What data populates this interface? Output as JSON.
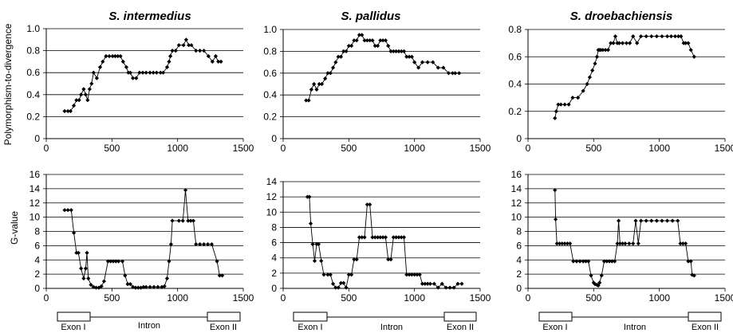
{
  "row_labels": {
    "top": "Polymorphism-to-divergence",
    "bottom": "G-value"
  },
  "gene_structure": {
    "exon1": "Exon I",
    "intron": "Intron",
    "exon2": "Exon II"
  },
  "chart_data": [
    {
      "type": "line",
      "title": "S. intermedius",
      "ylabel": "Polymorphism-to-divergence",
      "xlim": [
        0,
        1500
      ],
      "xticks": [
        0,
        500,
        1000,
        1500
      ],
      "ylim": [
        0,
        1.0
      ],
      "yticks": [
        0,
        0.2,
        0.4,
        0.6,
        0.8,
        1.0
      ],
      "ytick_labels": [
        "0",
        "0.2",
        "0.4",
        "0.6",
        "0.8",
        "1.0"
      ],
      "grid": "horizontal",
      "x": [
        140,
        165,
        185,
        210,
        230,
        250,
        265,
        285,
        300,
        315,
        330,
        345,
        360,
        385,
        410,
        430,
        455,
        480,
        505,
        525,
        545,
        565,
        585,
        610,
        625,
        640,
        660,
        685,
        710,
        735,
        760,
        790,
        815,
        840,
        870,
        890,
        920,
        935,
        945,
        960,
        985,
        1010,
        1045,
        1065,
        1085,
        1105,
        1140,
        1170,
        1200,
        1235,
        1265,
        1290,
        1310,
        1330
      ],
      "y": [
        0.25,
        0.25,
        0.25,
        0.3,
        0.35,
        0.35,
        0.4,
        0.45,
        0.4,
        0.35,
        0.45,
        0.5,
        0.6,
        0.55,
        0.65,
        0.7,
        0.75,
        0.75,
        0.75,
        0.75,
        0.75,
        0.75,
        0.7,
        0.65,
        0.6,
        0.6,
        0.55,
        0.55,
        0.6,
        0.6,
        0.6,
        0.6,
        0.6,
        0.6,
        0.6,
        0.6,
        0.65,
        0.7,
        0.75,
        0.8,
        0.8,
        0.85,
        0.85,
        0.9,
        0.85,
        0.85,
        0.8,
        0.8,
        0.8,
        0.75,
        0.7,
        0.75,
        0.7,
        0.7
      ]
    },
    {
      "type": "line",
      "title": "S. pallidus",
      "ylabel": "",
      "xlim": [
        0,
        1500
      ],
      "xticks": [
        0,
        500,
        1000,
        1500
      ],
      "ylim": [
        0,
        1.0
      ],
      "yticks": [
        0,
        0.2,
        0.4,
        0.6,
        0.8,
        1.0
      ],
      "ytick_labels": [
        "0",
        "0.2",
        "0.4",
        "0.6",
        "0.8",
        "1.0"
      ],
      "grid": "horizontal",
      "x": [
        175,
        195,
        215,
        235,
        255,
        275,
        295,
        320,
        340,
        360,
        380,
        400,
        420,
        440,
        460,
        480,
        500,
        520,
        540,
        560,
        580,
        600,
        620,
        640,
        660,
        680,
        700,
        720,
        740,
        760,
        780,
        800,
        820,
        840,
        860,
        880,
        900,
        920,
        940,
        960,
        980,
        1000,
        1030,
        1060,
        1100,
        1140,
        1180,
        1220,
        1260,
        1290,
        1310,
        1340
      ],
      "y": [
        0.35,
        0.35,
        0.45,
        0.5,
        0.45,
        0.5,
        0.5,
        0.55,
        0.6,
        0.6,
        0.65,
        0.7,
        0.75,
        0.75,
        0.8,
        0.8,
        0.85,
        0.85,
        0.9,
        0.9,
        0.95,
        0.95,
        0.9,
        0.9,
        0.9,
        0.9,
        0.85,
        0.85,
        0.9,
        0.9,
        0.9,
        0.85,
        0.8,
        0.8,
        0.8,
        0.8,
        0.8,
        0.8,
        0.75,
        0.75,
        0.75,
        0.7,
        0.65,
        0.7,
        0.7,
        0.7,
        0.65,
        0.65,
        0.6,
        0.6,
        0.6,
        0.6
      ]
    },
    {
      "type": "line",
      "title": "S. droebachiensis",
      "ylabel": "",
      "xlim": [
        0,
        1500
      ],
      "xticks": [
        0,
        500,
        1000,
        1500
      ],
      "ylim": [
        0,
        0.8
      ],
      "yticks": [
        0,
        0.2,
        0.4,
        0.6,
        0.8
      ],
      "ytick_labels": [
        "0",
        "0.2",
        "0.4",
        "0.6",
        "0.8"
      ],
      "grid": "horizontal",
      "x": [
        205,
        215,
        230,
        250,
        280,
        310,
        340,
        380,
        420,
        450,
        470,
        490,
        510,
        525,
        535,
        545,
        555,
        570,
        590,
        610,
        630,
        650,
        665,
        680,
        695,
        720,
        750,
        775,
        800,
        830,
        860,
        900,
        940,
        980,
        1020,
        1060,
        1090,
        1120,
        1145,
        1165,
        1185,
        1200,
        1220,
        1240,
        1265
      ],
      "y": [
        0.15,
        0.2,
        0.25,
        0.25,
        0.25,
        0.25,
        0.3,
        0.3,
        0.35,
        0.4,
        0.45,
        0.5,
        0.55,
        0.6,
        0.65,
        0.65,
        0.65,
        0.65,
        0.65,
        0.65,
        0.7,
        0.7,
        0.75,
        0.7,
        0.7,
        0.7,
        0.7,
        0.7,
        0.75,
        0.7,
        0.75,
        0.75,
        0.75,
        0.75,
        0.75,
        0.75,
        0.75,
        0.75,
        0.75,
        0.75,
        0.7,
        0.7,
        0.7,
        0.65,
        0.6
      ]
    },
    {
      "type": "line",
      "title": "",
      "ylabel": "G-value",
      "xlim": [
        0,
        1500
      ],
      "xticks": [
        0,
        500,
        1000,
        1500
      ],
      "ylim": [
        0,
        16
      ],
      "yticks": [
        0,
        2,
        4,
        6,
        8,
        10,
        12,
        14,
        16
      ],
      "ytick_labels": [
        "0",
        "2",
        "4",
        "6",
        "8",
        "10",
        "12",
        "14",
        "16"
      ],
      "grid": "horizontal",
      "x": [
        140,
        165,
        190,
        210,
        230,
        245,
        265,
        285,
        300,
        310,
        320,
        340,
        360,
        380,
        400,
        420,
        440,
        470,
        490,
        510,
        530,
        550,
        580,
        600,
        620,
        640,
        660,
        680,
        700,
        720,
        740,
        760,
        790,
        820,
        850,
        880,
        900,
        920,
        935,
        950,
        960,
        1010,
        1040,
        1060,
        1080,
        1100,
        1120,
        1140,
        1170,
        1200,
        1230,
        1260,
        1300,
        1320,
        1340
      ],
      "y": [
        11,
        11,
        11,
        7.8,
        5.0,
        5.0,
        2.8,
        1.4,
        2.8,
        5.0,
        1.4,
        0.5,
        0.2,
        0.1,
        0.1,
        0.3,
        1.0,
        3.8,
        3.8,
        3.8,
        3.8,
        3.8,
        3.8,
        1.8,
        0.6,
        0.6,
        0.2,
        0.1,
        0.1,
        0.1,
        0.2,
        0.2,
        0.2,
        0.2,
        0.2,
        0.2,
        0.3,
        1.4,
        3.8,
        6.2,
        9.5,
        9.5,
        9.5,
        13.8,
        9.5,
        9.5,
        9.5,
        6.2,
        6.2,
        6.2,
        6.2,
        6.2,
        3.8,
        1.8,
        1.8
      ]
    },
    {
      "type": "line",
      "title": "",
      "ylabel": "",
      "xlim": [
        0,
        1500
      ],
      "xticks": [
        0,
        500,
        1000,
        1500
      ],
      "ylim": [
        0,
        14
      ],
      "yticks": [
        0,
        2,
        4,
        6,
        8,
        10,
        12,
        14
      ],
      "ytick_labels": [
        "0",
        "2",
        "4",
        "6",
        "8",
        "10",
        "12",
        "14"
      ],
      "grid": "horizontal",
      "x": [
        185,
        200,
        210,
        225,
        240,
        255,
        270,
        290,
        310,
        340,
        360,
        380,
        400,
        420,
        440,
        460,
        480,
        500,
        520,
        540,
        560,
        580,
        600,
        620,
        640,
        660,
        680,
        700,
        720,
        740,
        760,
        780,
        800,
        820,
        840,
        860,
        880,
        900,
        920,
        940,
        960,
        980,
        1000,
        1020,
        1040,
        1060,
        1080,
        1100,
        1120,
        1150,
        1180,
        1210,
        1240,
        1270,
        1300,
        1330,
        1360
      ],
      "y": [
        12,
        12,
        8.5,
        5.8,
        3.6,
        5.8,
        5.8,
        3.6,
        1.8,
        1.8,
        1.8,
        0.6,
        0.1,
        0.1,
        0.7,
        0.7,
        0.1,
        1.8,
        1.8,
        3.8,
        3.8,
        6.7,
        6.7,
        6.7,
        11,
        11,
        6.7,
        6.7,
        6.7,
        6.7,
        6.7,
        6.7,
        3.8,
        3.8,
        6.7,
        6.7,
        6.7,
        6.7,
        6.7,
        1.8,
        1.8,
        1.8,
        1.8,
        1.8,
        1.8,
        0.6,
        0.6,
        0.6,
        0.6,
        0.6,
        0.1,
        0.6,
        0.1,
        0.1,
        0.1,
        0.6,
        0.6
      ]
    },
    {
      "type": "line",
      "title": "",
      "ylabel": "",
      "xlim": [
        0,
        1500
      ],
      "xticks": [
        0,
        500,
        1000,
        1500
      ],
      "ylim": [
        0,
        16
      ],
      "yticks": [
        0,
        2,
        4,
        6,
        8,
        10,
        12,
        14,
        16
      ],
      "ytick_labels": [
        "0",
        "2",
        "4",
        "6",
        "8",
        "10",
        "12",
        "14",
        "16"
      ],
      "grid": "horizontal",
      "x": [
        205,
        210,
        220,
        240,
        260,
        280,
        300,
        320,
        345,
        370,
        395,
        420,
        440,
        460,
        480,
        500,
        510,
        525,
        535,
        545,
        560,
        580,
        600,
        620,
        640,
        660,
        680,
        690,
        700,
        720,
        740,
        770,
        800,
        820,
        840,
        860,
        900,
        940,
        980,
        1020,
        1060,
        1100,
        1140,
        1160,
        1180,
        1200,
        1220,
        1240,
        1250,
        1265
      ],
      "y": [
        13.8,
        9.7,
        6.3,
        6.3,
        6.3,
        6.3,
        6.3,
        6.3,
        3.8,
        3.8,
        3.8,
        3.8,
        3.8,
        3.8,
        1.8,
        0.8,
        0.6,
        0.5,
        0.4,
        0.8,
        1.8,
        3.8,
        3.8,
        3.8,
        3.8,
        3.8,
        6.3,
        9.5,
        6.3,
        6.3,
        6.3,
        6.3,
        6.3,
        9.5,
        6.3,
        9.5,
        9.5,
        9.5,
        9.5,
        9.5,
        9.5,
        9.5,
        9.5,
        6.3,
        6.3,
        6.3,
        3.8,
        3.8,
        1.9,
        1.8
      ]
    }
  ]
}
